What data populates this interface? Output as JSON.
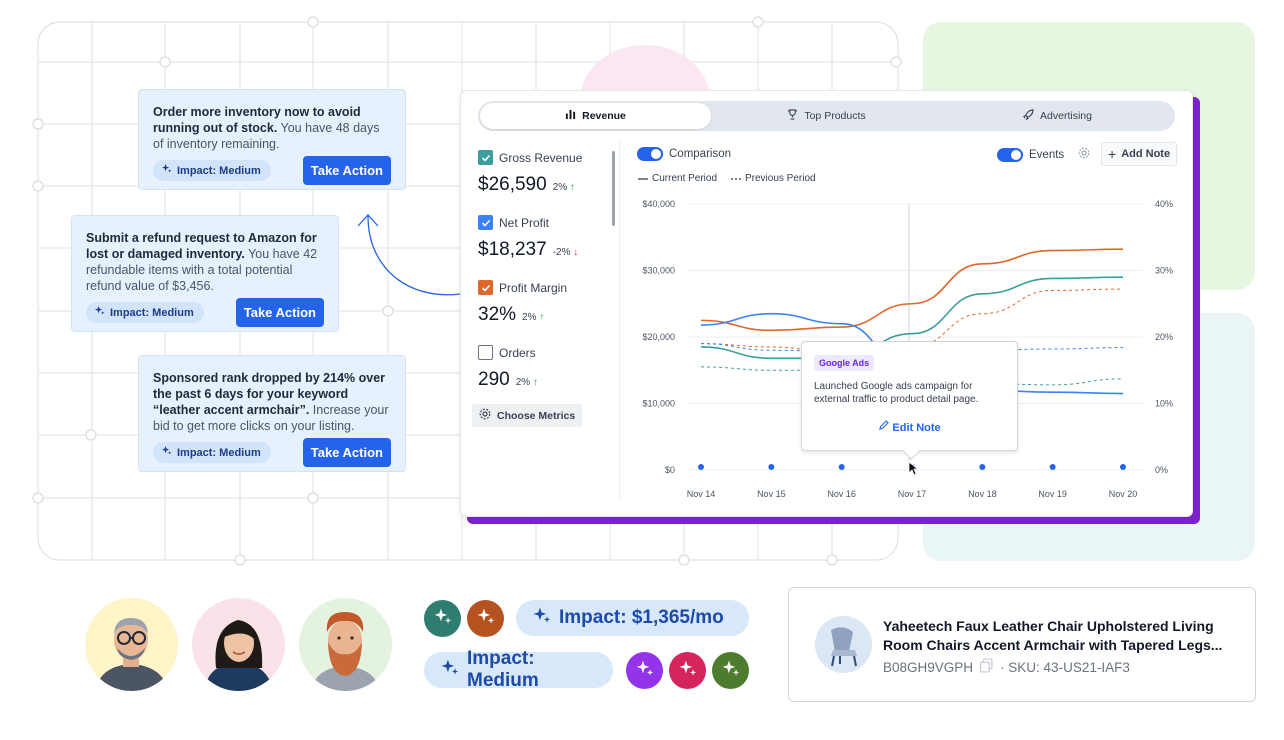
{
  "cards": [
    {
      "bold": "Order more inventory now to avoid running out of stock.",
      "rest": " You have 48 days of inventory remaining.",
      "impact": "Impact: Medium",
      "action": "Take Action"
    },
    {
      "bold": "Submit a refund request to Amazon for lost or damaged inventory.",
      "rest": " You have 42 refundable items with a total potential refund value of $3,456.",
      "impact": "Impact: Medium",
      "action": "Take Action"
    },
    {
      "bold": "Sponsored rank dropped by 214% over the past 6 days for your keyword “leather accent armchair”.",
      "rest": " Increase your bid to get more clicks on your listing.",
      "impact": "Impact: Medium",
      "action": "Take Action"
    }
  ],
  "tabs": [
    {
      "label": "Revenue",
      "icon": "bar-chart-icon",
      "active": true
    },
    {
      "label": "Top Products",
      "icon": "trophy-icon",
      "active": false
    },
    {
      "label": "Advertising",
      "icon": "rocket-icon",
      "active": false
    }
  ],
  "metrics": [
    {
      "label": "Gross Revenue",
      "value": "$26,590",
      "change": "2%",
      "direction": "up",
      "checked": true,
      "color": "#3a9e9a"
    },
    {
      "label": "Net Profit",
      "value": "$18,237",
      "change": "-2%",
      "direction": "down",
      "checked": true,
      "color": "#3b82f6"
    },
    {
      "label": "Profit Margin",
      "value": "32%",
      "change": "2%",
      "direction": "up",
      "checked": true,
      "color": "#e0662a"
    },
    {
      "label": "Orders",
      "value": "290",
      "change": "2%",
      "direction": "up",
      "checked": false,
      "color": "#ffffff"
    }
  ],
  "choose_metrics": "Choose Metrics",
  "controls": {
    "comparison": "Comparison",
    "events": "Events",
    "add_note": "Add Note"
  },
  "legend": {
    "current": "Current Period",
    "previous": "Previous Period"
  },
  "tooltip": {
    "tag": "Google Ads",
    "text": "Launched Google ads campaign for external traffic to product detail page.",
    "edit": "Edit Note"
  },
  "chart_data": {
    "type": "line",
    "x": [
      "Nov 14",
      "Nov 15",
      "Nov 16",
      "Nov 17",
      "Nov 18",
      "Nov 19",
      "Nov 20"
    ],
    "y_left_ticks": [
      "$0",
      "$10,000",
      "$20,000",
      "$30,000",
      "$40,000"
    ],
    "y_right_ticks": [
      "0%",
      "10%",
      "20%",
      "30%",
      "40%"
    ],
    "ylim_left": [
      0,
      40000
    ],
    "ylim_right": [
      0,
      40
    ],
    "series": [
      {
        "metric": "Profit Margin",
        "period": "current",
        "axis": "right",
        "color": "#e0662a",
        "values": [
          22.5,
          21,
          21.5,
          25,
          31,
          33,
          33.2
        ]
      },
      {
        "metric": "Profit Margin",
        "period": "previous",
        "axis": "right",
        "color": "#e0662a",
        "values": [
          19,
          18.5,
          17.5,
          18.5,
          23.5,
          27,
          27.2
        ]
      },
      {
        "metric": "Gross Revenue",
        "period": "current",
        "axis": "left",
        "color": "#3a9e9a",
        "values": [
          18500,
          16800,
          16800,
          20500,
          26500,
          28800,
          29000
        ]
      },
      {
        "metric": "Gross Revenue",
        "period": "previous",
        "axis": "left",
        "color": "#3a9e9a",
        "values": [
          15500,
          15000,
          15000,
          15500,
          13000,
          12800,
          13700
        ]
      },
      {
        "metric": "Net Profit",
        "period": "current",
        "axis": "left",
        "color": "#3b82f6",
        "values": [
          21800,
          23500,
          22000,
          15000,
          12000,
          11700,
          11500
        ]
      },
      {
        "metric": "Net Profit",
        "period": "previous",
        "axis": "left",
        "color": "#3b82f6",
        "values": [
          19000,
          18000,
          17800,
          18000,
          18000,
          18200,
          18400
        ]
      }
    ],
    "event_markers": [
      "Nov 14",
      "Nov 15",
      "Nov 16",
      "Nov 17",
      "Nov 18",
      "Nov 19",
      "Nov 20"
    ],
    "hover_x": "Nov 17",
    "grid": "horizontal"
  },
  "pills": {
    "impact_money": "Impact: $1,365/mo",
    "impact_medium": "Impact: Medium"
  },
  "spark_colors": [
    "#2e7d6e",
    "#b55320",
    "#9333ea",
    "#d6245d",
    "#4d7c2f"
  ],
  "product": {
    "title": "Yaheetech Faux Leather Chair Upholstered Living Room Chairs Accent Armchair with Tapered Legs...",
    "asin": "B08GH9VGPH",
    "sku": "· SKU: 43-US21-IAF3"
  }
}
